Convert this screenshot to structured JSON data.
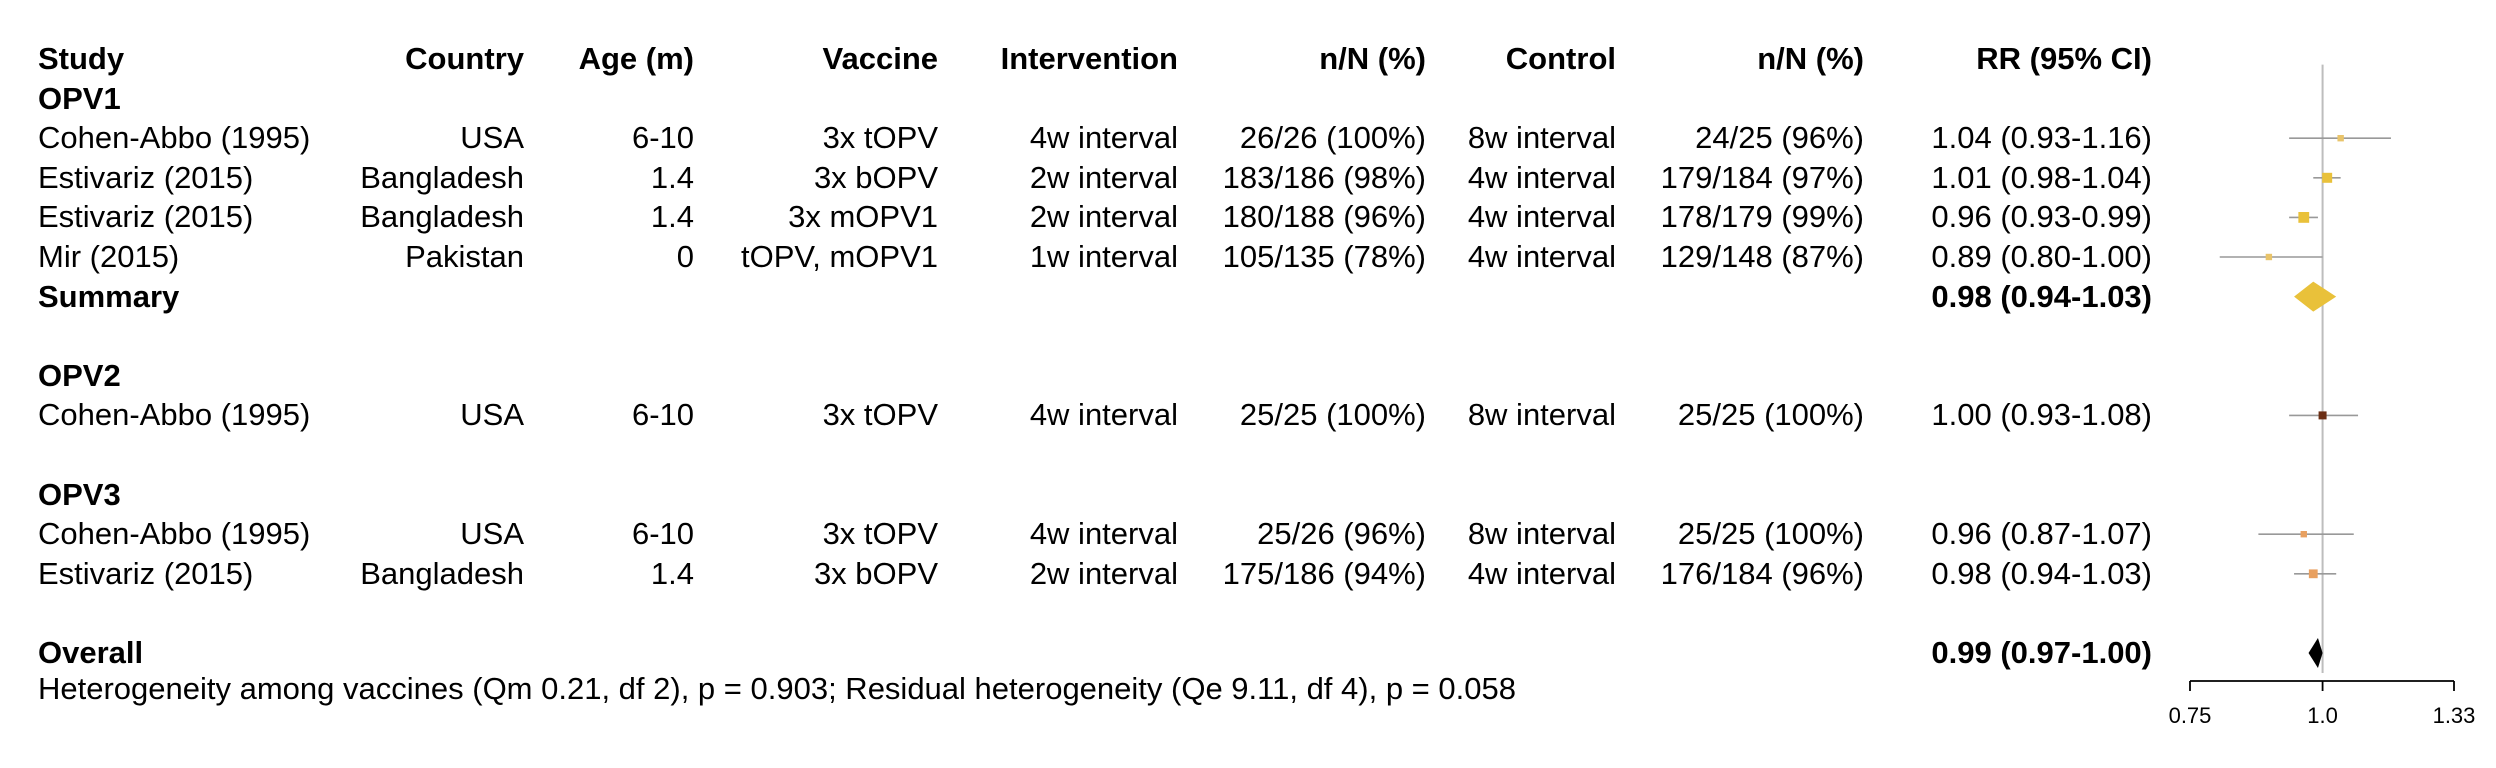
{
  "chart_data": {
    "type": "forest",
    "columns": [
      "Study",
      "Country",
      "Age (m)",
      "Vaccine",
      "Intervention",
      "n/N (%)",
      "Control",
      "n/N (%)",
      "RR (95% CI)"
    ],
    "groups": [
      {
        "name": "OPV1",
        "studies": [
          {
            "study": "Cohen-Abbo (1995)",
            "country": "USA",
            "age": "6-10",
            "vaccine": "3x tOPV",
            "intervention": "4w interval",
            "int_n": "26/26 (100%)",
            "control": "8w interval",
            "ctl_n": "24/25 (96%)",
            "rr_text": "1.04 (0.93-1.16)",
            "rr": 1.04,
            "lo": 0.93,
            "hi": 1.16,
            "weight": 0.3,
            "color": "#e9c46a"
          },
          {
            "study": "Estivariz (2015)",
            "country": "Bangladesh",
            "age": "1.4",
            "vaccine": "3x bOPV",
            "intervention": "2w interval",
            "int_n": "183/186 (98%)",
            "control": "4w interval",
            "ctl_n": "179/184 (97%)",
            "rr_text": "1.01 (0.98-1.04)",
            "rr": 1.01,
            "lo": 0.98,
            "hi": 1.04,
            "weight": 0.75,
            "color": "#e9c13a"
          },
          {
            "study": "Estivariz (2015)",
            "country": "Bangladesh",
            "age": "1.4",
            "vaccine": "3x mOPV1",
            "intervention": "2w interval",
            "int_n": "180/188 (96%)",
            "control": "4w interval",
            "ctl_n": "178/179 (99%)",
            "rr_text": "0.96 (0.93-0.99)",
            "rr": 0.96,
            "lo": 0.93,
            "hi": 0.99,
            "weight": 0.85,
            "color": "#e9c13a"
          },
          {
            "study": "Mir (2015)",
            "country": "Pakistan",
            "age": "0",
            "vaccine": "tOPV, mOPV1",
            "intervention": "1w interval",
            "int_n": "105/135 (78%)",
            "control": "4w interval",
            "ctl_n": "129/148 (87%)",
            "rr_text": "0.89 (0.80-1.00)",
            "rr": 0.89,
            "lo": 0.8,
            "hi": 1.0,
            "weight": 0.3,
            "color": "#e9c46a"
          }
        ],
        "summary": {
          "label": "Summary",
          "rr_text": "0.98 (0.94-1.03)",
          "rr": 0.98,
          "lo": 0.94,
          "hi": 1.03,
          "color": "#e9c13a"
        }
      },
      {
        "name": "OPV2",
        "studies": [
          {
            "study": "Cohen-Abbo (1995)",
            "country": "USA",
            "age": "6-10",
            "vaccine": "3x tOPV",
            "intervention": "4w interval",
            "int_n": "25/25 (100%)",
            "control": "8w interval",
            "ctl_n": "25/25 (100%)",
            "rr_text": "1.00 (0.93-1.08)",
            "rr": 1.0,
            "lo": 0.93,
            "hi": 1.08,
            "weight": 0.5,
            "color": "#6b2e14"
          }
        ]
      },
      {
        "name": "OPV3",
        "studies": [
          {
            "study": "Cohen-Abbo (1995)",
            "country": "USA",
            "age": "6-10",
            "vaccine": "3x tOPV",
            "intervention": "4w interval",
            "int_n": "25/26 (96%)",
            "control": "8w interval",
            "ctl_n": "25/25 (100%)",
            "rr_text": "0.96 (0.87-1.07)",
            "rr": 0.96,
            "lo": 0.87,
            "hi": 1.07,
            "weight": 0.3,
            "color": "#e8a060"
          },
          {
            "study": "Estivariz (2015)",
            "country": "Bangladesh",
            "age": "1.4",
            "vaccine": "3x bOPV",
            "intervention": "2w interval",
            "int_n": "175/186 (94%)",
            "control": "4w interval",
            "ctl_n": "176/184 (96%)",
            "rr_text": "0.98 (0.94-1.03)",
            "rr": 0.98,
            "lo": 0.94,
            "hi": 1.03,
            "weight": 0.6,
            "color": "#e8a060"
          }
        ]
      }
    ],
    "overall": {
      "label": "Overall",
      "rr_text": "0.99 (0.97-1.00)",
      "rr": 0.99,
      "lo": 0.97,
      "hi": 1.0,
      "color": "#000000"
    },
    "heterogeneity": "Heterogeneity among vaccines (Qm 0.21, df 2), p = 0.903; Residual heterogeneity (Qe 9.11, df 4), p = 0.058",
    "x_axis": {
      "scale": "log",
      "range": [
        0.75,
        1.33
      ],
      "ticks": [
        0.75,
        1.0,
        1.33
      ],
      "tick_labels": [
        "0.75",
        "1.0",
        "1.33"
      ],
      "reference": 1.0
    },
    "colors": {
      "ci_line": "#999999",
      "reference_line": "#bdbdbd"
    }
  }
}
